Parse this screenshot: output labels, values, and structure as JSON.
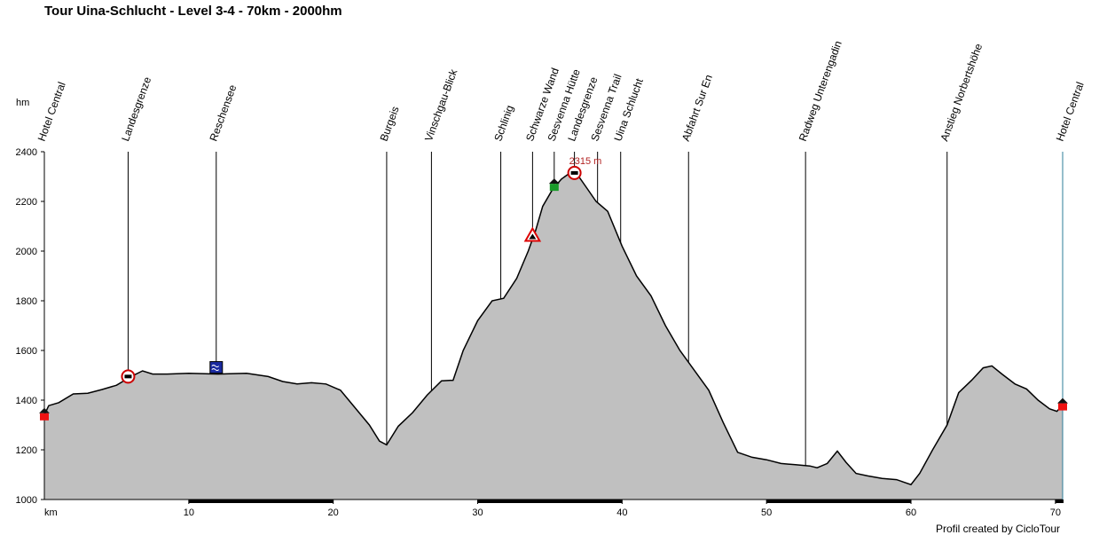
{
  "title": "Tour Uina-Schlucht - Level 3-4 - 70km - 2000hm",
  "credit": "Profil created by CicloTour",
  "colors": {
    "profile_fill": "#c0c0c0",
    "profile_line": "#000000",
    "axis": "#000000",
    "peak_label": "#b22222"
  },
  "chart_data": {
    "type": "area",
    "title": "Tour Uina-Schlucht - Level 3-4 - 70km - 2000hm",
    "xlabel": "km",
    "ylabel": "hm",
    "xlim": [
      0,
      70.5
    ],
    "ylim": [
      1000,
      2400
    ],
    "x_ticks": [
      10,
      20,
      30,
      40,
      50,
      60,
      70
    ],
    "y_ticks": [
      1000,
      1200,
      1400,
      1600,
      1800,
      2000,
      2200,
      2400
    ],
    "grid": false,
    "peak_annotation": {
      "km": 36.7,
      "label": "2315 m"
    },
    "profile": {
      "x": [
        0,
        0.3,
        1,
        2,
        3,
        4,
        5,
        6,
        6.8,
        7.5,
        8.5,
        10,
        12,
        14,
        15.5,
        16.5,
        17.5,
        18.5,
        19.5,
        20.5,
        21.5,
        22.5,
        23.2,
        23.7,
        24.5,
        25.5,
        26.5,
        27.5,
        28.3,
        29,
        30,
        31,
        31.8,
        32.7,
        33.5,
        34,
        34.5,
        35.2,
        35.8,
        36.4,
        37,
        37.6,
        38.2,
        39,
        40,
        41,
        42,
        43,
        44,
        45,
        46,
        47,
        48,
        49,
        50,
        51,
        52,
        53,
        53.5,
        54.2,
        54.9,
        55.5,
        56.2,
        57,
        58,
        59,
        59.5,
        60,
        60.6,
        61.5,
        62.5,
        63.3,
        64.2,
        65,
        65.6,
        66.3,
        67.2,
        68,
        68.8,
        69.6,
        70.1,
        70.5
      ],
      "y": [
        1340,
        1378,
        1390,
        1425,
        1428,
        1443,
        1460,
        1495,
        1518,
        1505,
        1505,
        1508,
        1505,
        1508,
        1495,
        1475,
        1465,
        1470,
        1465,
        1440,
        1370,
        1300,
        1235,
        1220,
        1295,
        1350,
        1420,
        1478,
        1480,
        1600,
        1720,
        1800,
        1810,
        1890,
        2000,
        2080,
        2180,
        2250,
        2290,
        2315,
        2300,
        2250,
        2200,
        2160,
        2020,
        1900,
        1820,
        1700,
        1600,
        1520,
        1440,
        1310,
        1190,
        1170,
        1160,
        1145,
        1140,
        1135,
        1128,
        1145,
        1195,
        1150,
        1105,
        1095,
        1085,
        1080,
        1070,
        1060,
        1105,
        1200,
        1300,
        1430,
        1480,
        1530,
        1538,
        1505,
        1465,
        1445,
        1400,
        1365,
        1355,
        1380
      ]
    },
    "waypoints": [
      {
        "km": 0,
        "label": "Hotel Central",
        "icon": "start-flag-icon"
      },
      {
        "km": 5.8,
        "label": "Landesgrenze",
        "icon": "restaurant-icon"
      },
      {
        "km": 11.9,
        "label": "Reschensee",
        "icon": "lake-icon"
      },
      {
        "km": 23.7,
        "label": "Burgeis"
      },
      {
        "km": 26.8,
        "label": "Vinschgau-Blick"
      },
      {
        "km": 31.6,
        "label": "Schlinig"
      },
      {
        "km": 33.8,
        "label": "Schwarze Wand",
        "icon": "warning-icon"
      },
      {
        "km": 35.3,
        "label": "Sesvenna Hütte",
        "icon": "hut-icon"
      },
      {
        "km": 36.7,
        "label": "Landesgrenze",
        "icon": "restaurant-icon"
      },
      {
        "km": 38.3,
        "label": "Sesvenna Trail"
      },
      {
        "km": 39.9,
        "label": "Uina Schlucht"
      },
      {
        "km": 44.6,
        "label": "Abfahrt Sur En"
      },
      {
        "km": 52.7,
        "label": "Radweg Unterengadin"
      },
      {
        "km": 62.5,
        "label": "Anstieg Norbertshöhe"
      },
      {
        "km": 70.5,
        "label": "Hotel Central",
        "icon": "finish-flag-icon"
      }
    ]
  }
}
